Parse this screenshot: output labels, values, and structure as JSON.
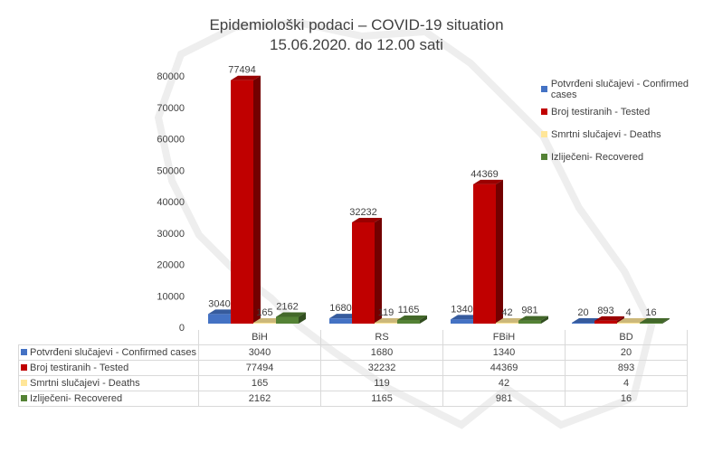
{
  "chart_data": {
    "type": "bar",
    "title": "Epidemiološki podaci – COVID-19 situation",
    "subtitle": "15.06.2020. do 12.00 sati",
    "categories": [
      "BiH",
      "RS",
      "FBiH",
      "BD"
    ],
    "series": [
      {
        "name": "Potvrđeni slučajevi - Confirmed cases",
        "values": [
          3040,
          1680,
          1340,
          20
        ],
        "color": "#4472C4"
      },
      {
        "name": "Broj testiranih - Tested",
        "values": [
          77494,
          32232,
          44369,
          893
        ],
        "color": "#C00000"
      },
      {
        "name": "Smrtni slučajevi - Deaths",
        "values": [
          165,
          119,
          42,
          4
        ],
        "color": "#FFE699"
      },
      {
        "name": "Izliječeni- Recovered",
        "values": [
          2162,
          1165,
          981,
          16
        ],
        "color": "#548235"
      }
    ],
    "yticks": [
      "0",
      "10000",
      "20000",
      "30000",
      "40000",
      "50000",
      "60000",
      "70000",
      "80000"
    ],
    "ylim": [
      0,
      80000
    ],
    "grid": false,
    "legend": "right",
    "data_table": true,
    "style": "3d-column"
  }
}
